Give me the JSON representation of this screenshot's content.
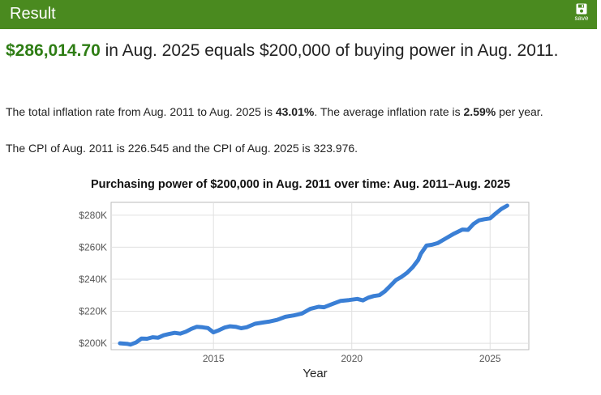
{
  "header": {
    "title": "Result",
    "save_label": "save",
    "icon": "floppy-disk-icon",
    "color": "#4a8a1f"
  },
  "result": {
    "amount": "$286,014.70",
    "rest": " in Aug. 2025 equals $200,000 of buying power in Aug. 2011."
  },
  "details": {
    "line1_pre": "The total inflation rate from Aug. 2011 to Aug. 2025 is ",
    "total_rate": "43.01%",
    "line1_mid": ". The average inflation rate is ",
    "avg_rate": "2.59%",
    "line1_post": " per year.",
    "line2": "The CPI of Aug. 2011 is 226.545 and the CPI of Aug. 2025 is 323.976."
  },
  "chart_data": {
    "type": "line",
    "title": "Purchasing power of $200,000 in Aug. 2011 over time: Aug. 2011–Aug. 2025",
    "xlabel": "Year",
    "ylabel": "",
    "xlim": [
      2011.3,
      2026.4
    ],
    "ylim": [
      196000,
      288000
    ],
    "x_ticks": [
      2015,
      2020,
      2025
    ],
    "y_ticks": [
      200000,
      220000,
      240000,
      260000,
      280000
    ],
    "y_tick_labels": [
      "$200K",
      "$220K",
      "$240K",
      "$260K",
      "$280K"
    ],
    "grid": true,
    "line_color": "#3a7fd5",
    "series": [
      {
        "x": [
          2011.62,
          2011.9,
          2012.0,
          2012.2,
          2012.4,
          2012.6,
          2012.8,
          2013.0,
          2013.2,
          2013.4,
          2013.6,
          2013.8,
          2014.0,
          2014.2,
          2014.4,
          2014.6,
          2014.8,
          2015.0,
          2015.2,
          2015.4,
          2015.6,
          2015.8,
          2016.0,
          2016.2,
          2016.5,
          2016.8,
          2017.0,
          2017.3,
          2017.6,
          2017.9,
          2018.2,
          2018.5,
          2018.8,
          2019.0,
          2019.3,
          2019.6,
          2019.9,
          2020.2,
          2020.4,
          2020.6,
          2020.8,
          2021.0,
          2021.2,
          2021.4,
          2021.6,
          2021.8,
          2022.0,
          2022.2,
          2022.4,
          2022.5,
          2022.7,
          2022.9,
          2023.1,
          2023.4,
          2023.7,
          2024.0,
          2024.2,
          2024.4,
          2024.6,
          2024.8,
          2025.0,
          2025.2,
          2025.4,
          2025.62
        ],
        "y": [
          200000,
          199600,
          199200,
          200500,
          203000,
          202800,
          203800,
          203500,
          205000,
          205800,
          206500,
          206000,
          207200,
          209000,
          210300,
          210000,
          209500,
          206800,
          208200,
          209800,
          210600,
          210300,
          209400,
          210000,
          212200,
          213000,
          213500,
          214600,
          216500,
          217400,
          218600,
          221500,
          222800,
          222500,
          224500,
          226500,
          227000,
          227700,
          226800,
          228500,
          229500,
          230000,
          232500,
          236000,
          239500,
          241500,
          244000,
          247500,
          252000,
          256000,
          261000,
          261500,
          262500,
          265500,
          268500,
          271000,
          270800,
          274500,
          276800,
          277500,
          278000,
          281000,
          283800,
          286000
        ]
      }
    ]
  }
}
